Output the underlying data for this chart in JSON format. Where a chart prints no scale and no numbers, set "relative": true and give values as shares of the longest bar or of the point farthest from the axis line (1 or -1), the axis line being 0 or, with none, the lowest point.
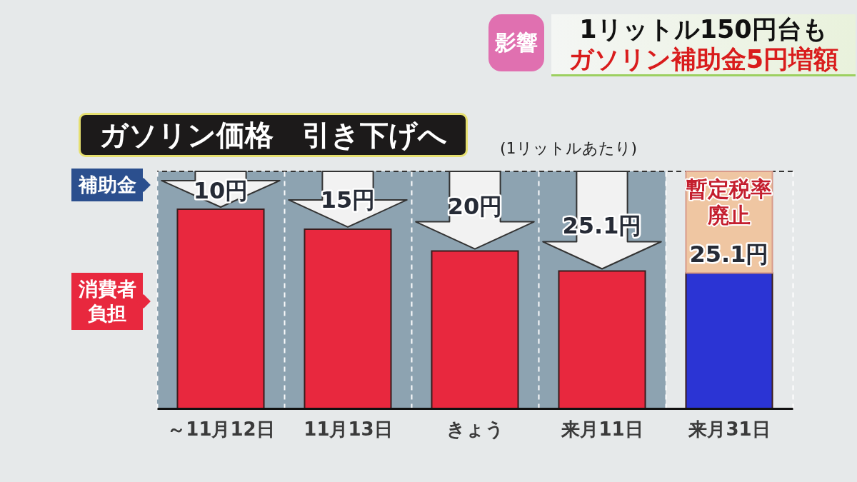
{
  "chart_data": {
    "type": "bar",
    "title": "ガソリン価格　引き下げへ",
    "subtitle": "(1リットルあたり)",
    "categories": [
      "～11月12日",
      "11月13日",
      "きょう",
      "来月11日",
      "来月31日"
    ],
    "relative": true,
    "series": [
      {
        "name": "消費者負担",
        "color": "#e8283e",
        "colors": [
          "#e8283e",
          "#e8283e",
          "#e8283e",
          "#e8283e",
          "#2b34d4"
        ],
        "values": [
          1,
          0.9,
          0.79,
          0.69,
          0.68
        ]
      }
    ],
    "bands": [
      {
        "axis": "x",
        "from": "～11月12日",
        "to": "来月11日",
        "color": "#8da3b1"
      }
    ],
    "ref_lines": [
      {
        "axis": "y",
        "value": 1.19,
        "line_style": "dashed",
        "color": "#333333"
      }
    ],
    "grid": "x",
    "legend": "left",
    "annotations": [
      "影響",
      "1リットル150円台も",
      "ガソリン補助金5円増額",
      "補助金",
      "10円",
      "15円",
      "20円",
      "25.1円",
      "暫定税率廃止",
      "25.1円"
    ]
  }
}
